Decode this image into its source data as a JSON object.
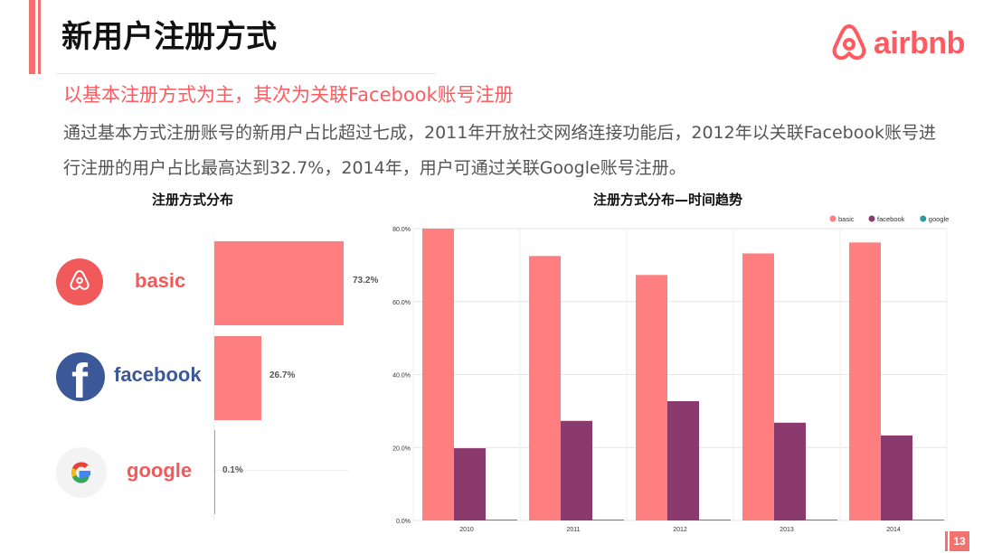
{
  "header": {
    "title": "新用户注册方式",
    "subtitle": "以基本注册方式为主，其次为关联Facebook账号注册",
    "body": "通过基本方式注册账号的新用户占比超过七成，2011年开放社交网络连接功能后，2012年以关联Facebook账号进行注册的用户占比最高达到32.7%，2014年，用户可通过关联Google账号注册。"
  },
  "brand": {
    "logo_text": "airbnb",
    "accent_color": "#ff5a5f"
  },
  "page_number": "13",
  "chart_data": [
    {
      "type": "bar",
      "orientation": "horizontal",
      "title": "注册方式分布",
      "categories": [
        "basic",
        "facebook",
        "google"
      ],
      "values": [
        73.2,
        26.7,
        0.1
      ],
      "value_labels": [
        "73.2%",
        "26.7%",
        "0.1%"
      ],
      "category_colors": [
        "#f05a5b",
        "#3b5998",
        "#f05a5b"
      ],
      "bar_color": "#ff7f81"
    },
    {
      "type": "bar",
      "title": "注册方式分布—时间趋势",
      "categories": [
        "2010",
        "2011",
        "2012",
        "2013",
        "2014"
      ],
      "series": [
        {
          "name": "basic",
          "values": [
            80.0,
            72.5,
            67.3,
            73.2,
            76.2
          ],
          "color": "#ff7f81"
        },
        {
          "name": "facebook",
          "values": [
            19.8,
            27.3,
            32.7,
            26.8,
            23.3
          ],
          "color": "#8b3a6e"
        },
        {
          "name": "google",
          "values": [
            0,
            0,
            0,
            0,
            0.1
          ],
          "color": "#2e9aa0"
        }
      ],
      "yticks": [
        "0.0%",
        "20.0%",
        "40.0%",
        "60.0%",
        "80.0%"
      ],
      "ylim": [
        0,
        80
      ],
      "grid": true,
      "legend_position": "top-right"
    }
  ]
}
